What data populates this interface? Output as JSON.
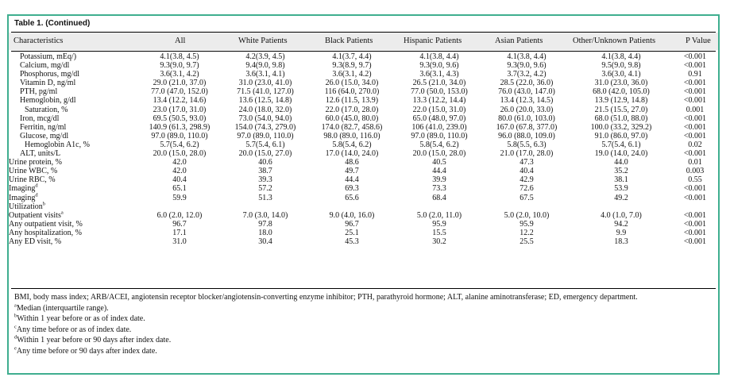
{
  "table": {
    "title": "Table 1. (Continued)",
    "headers": [
      "Characteristics",
      "All",
      "White Patients",
      "Black Patients",
      "Hispanic Patients",
      "Asian Patients",
      "Other/Unknown Patients",
      "P Value"
    ],
    "rows": [
      {
        "label": "Potassium, mEq/)",
        "sup": "",
        "indent": 1,
        "cells": [
          "4.1(3.8, 4.5)",
          "4.2(3.9, 4.5)",
          "4.1(3.7, 4.4)",
          "4.1(3.8, 4.4)",
          "4.1(3.8, 4.4)",
          "4.1(3.8, 4.4)",
          "<0.001"
        ]
      },
      {
        "label": "Calcium, mg/dl",
        "sup": "",
        "indent": 1,
        "cells": [
          "9.3(9.0, 9.7)",
          "9.4(9.0, 9.8)",
          "9.3(8.9, 9.7)",
          "9.3(9.0, 9.6)",
          "9.3(9.0, 9.6)",
          "9.5(9.0, 9.8)",
          "<0.001"
        ]
      },
      {
        "label": "Phosphorus, mg/dl",
        "sup": "",
        "indent": 1,
        "cells": [
          "3.6(3.1, 4.2)",
          "3.6(3.1, 4.1)",
          "3.6(3.1, 4.2)",
          "3.6(3.1, 4.3)",
          "3.7(3.2, 4.2)",
          "3.6(3.0, 4.1)",
          "0.91"
        ]
      },
      {
        "label": "Vitamin D, ng/ml",
        "sup": "",
        "indent": 1,
        "cells": [
          "29.0 (21.0, 37.0)",
          "31.0 (23.0, 41.0)",
          "26.0 (15.0, 34.0)",
          "26.5 (21.0, 34.0)",
          "28.5 (22.0, 36.0)",
          "31.0 (23.0, 36.0)",
          "<0.001"
        ]
      },
      {
        "label": "PTH, pg/ml",
        "sup": "",
        "indent": 1,
        "cells": [
          "77.0 (47.0, 152.0)",
          "71.5 (41.0, 127.0)",
          "116 (64.0, 270.0)",
          "77.0 (50.0, 153.0)",
          "76.0 (43.0, 147.0)",
          "68.0 (42.0, 105.0)",
          "<0.001"
        ]
      },
      {
        "label": "Hemoglobin, g/dl",
        "sup": "",
        "indent": 1,
        "cells": [
          "13.4 (12.2, 14.6)",
          "13.6 (12.5, 14.8)",
          "12.6 (11.5, 13.9)",
          "13.3 (12.2, 14.4)",
          "13.4 (12.3, 14.5)",
          "13.9 (12.9, 14.8)",
          "<0.001"
        ]
      },
      {
        "label": "Saturation, %",
        "sup": "",
        "indent": 2,
        "cells": [
          "23.0 (17.0, 31.0)",
          "24.0 (18.0, 32.0)",
          "22.0 (17.0, 28.0)",
          "22.0 (15.0, 31.0)",
          "26.0 (20.0, 33.0)",
          "21.5 (15.5, 27.0)",
          "0.001"
        ]
      },
      {
        "label": "Iron, mcg/dl",
        "sup": "",
        "indent": 1,
        "cells": [
          "69.5 (50.5, 93.0)",
          "73.0 (54.0, 94.0)",
          "60.0 (45.0, 80.0)",
          "65.0 (48.0, 97.0)",
          "80.0 (61.0, 103.0)",
          "68.0 (51.0, 88.0)",
          "<0.001"
        ]
      },
      {
        "label": "Ferritin, ng/ml",
        "sup": "",
        "indent": 1,
        "cells": [
          "140.9 (61.3, 298.9)",
          "154.0 (74.3, 279.0)",
          "174.0 (82.7, 458.6)",
          "106 (41.0, 239.0)",
          "167.0 (67.8, 377.0)",
          "100.0 (33.2, 329.2)",
          "<0.001"
        ]
      },
      {
        "label": "Glucose, mg/dl",
        "sup": "",
        "indent": 1,
        "cells": [
          "97.0 (89.0, 110.0)",
          "97.0 (89.0, 110.0)",
          "98.0 (89.0, 116.0)",
          "97.0 (89.0, 110.0)",
          "96.0 (88.0, 109.0)",
          "91.0 (86.0, 97.0)",
          "<0.001"
        ]
      },
      {
        "label": "Hemoglobin A1c, %",
        "sup": "",
        "indent": 2,
        "cells": [
          "5.7(5.4, 6.2)",
          "5.7(5.4, 6.1)",
          "5.8(5.4, 6.2)",
          "5.8(5.4, 6.2)",
          "5.8(5.5, 6.3)",
          "5.7(5.4, 6.1)",
          "0.02"
        ]
      },
      {
        "label": "ALT, units/L",
        "sup": "",
        "indent": 1,
        "cells": [
          "20.0 (15.0, 28.0)",
          "20.0 (15.0, 27.0)",
          "17.0 (14.0, 24.0)",
          "20.0 (15.0, 28.0)",
          "21.0 (17.0, 28.0)",
          "19.0 (14.0, 24.0)",
          "<0.001"
        ]
      },
      {
        "label": "Urine protein, %",
        "sup": "",
        "indent": 0,
        "cells": [
          "42.0",
          "40.6",
          "48.6",
          "40.5",
          "47.3",
          "44.0",
          "0.01"
        ]
      },
      {
        "label": "Urine WBC, %",
        "sup": "",
        "indent": 0,
        "cells": [
          "42.0",
          "38.7",
          "49.7",
          "44.4",
          "40.4",
          "35.2",
          "0.003"
        ]
      },
      {
        "label": "Urine RBC, %",
        "sup": "",
        "indent": 0,
        "cells": [
          "40.4",
          "39.3",
          "44.4",
          "39.9",
          "42.9",
          "38.1",
          "0.55"
        ]
      },
      {
        "label": "Imaging",
        "sup": "d",
        "indent": 0,
        "cells": [
          "65.1",
          "57.2",
          "69.3",
          "73.3",
          "72.6",
          "53.9",
          "<0.001"
        ]
      },
      {
        "label": "Imaging",
        "sup": "d",
        "indent": 0,
        "cells": [
          "59.9",
          "51.3",
          "65.6",
          "68.4",
          "67.5",
          "49.2",
          "<0.001"
        ]
      },
      {
        "label": "Utilization",
        "sup": "b",
        "indent": 0,
        "cells": [
          "",
          "",
          "",
          "",
          "",
          "",
          ""
        ]
      },
      {
        "label": "Outpatient visits",
        "sup": "a",
        "indent": 0,
        "cells": [
          "6.0 (2.0, 12.0)",
          "7.0 (3.0, 14.0)",
          "9.0 (4.0, 16.0)",
          "5.0 (2.0, 11.0)",
          "5.0 (2.0, 10.0)",
          "4.0 (1.0, 7.0)",
          "<0.001"
        ]
      },
      {
        "label": "Any outpatient visit, %",
        "sup": "",
        "indent": 0,
        "cells": [
          "96.7",
          "97.8",
          "96.7",
          "95.9",
          "95.9",
          "94.2",
          "<0.001"
        ]
      },
      {
        "label": "Any hospitalization, %",
        "sup": "",
        "indent": 0,
        "cells": [
          "17.1",
          "18.0",
          "25.1",
          "15.5",
          "12.2",
          "9.9",
          "<0.001"
        ]
      },
      {
        "label": "Any ED visit, %",
        "sup": "",
        "indent": 0,
        "cells": [
          "31.0",
          "30.4",
          "45.3",
          "30.2",
          "25.5",
          "18.3",
          "<0.001"
        ]
      }
    ]
  },
  "notes": {
    "abbreviations": "BMI, body mass index; ARB/ACEI, angiotensin receptor blocker/angiotensin-converting enzyme inhibitor; PTH, parathyroid hormone; ALT, alanine aminotransferase; ED, emergency department.",
    "footnotes": [
      {
        "mark": "a",
        "text": "Median (interquartile range)."
      },
      {
        "mark": "b",
        "text": "Within 1 year before or as of index date."
      },
      {
        "mark": "c",
        "text": "Any time before or as of index date."
      },
      {
        "mark": "d",
        "text": "Within 1 year before or 90 days after index date."
      },
      {
        "mark": "e",
        "text": "Any time before or 90 days after index date."
      }
    ]
  },
  "colors": {
    "border": "#3fae8f",
    "header_bg": "#ececec"
  }
}
